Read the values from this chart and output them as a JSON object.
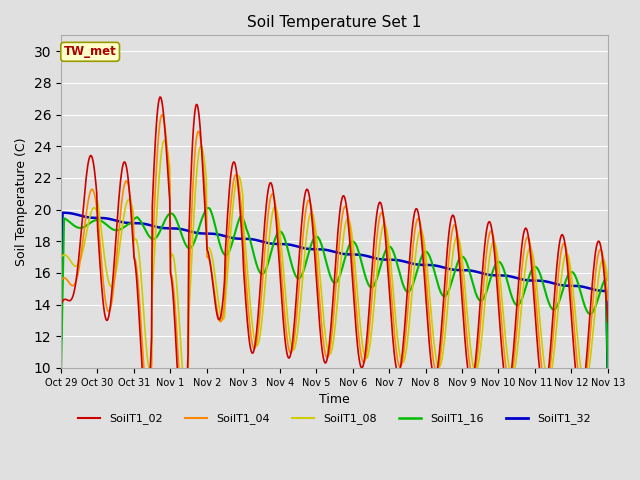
{
  "title": "Soil Temperature Set 1",
  "xlabel": "Time",
  "ylabel": "Soil Temperature (C)",
  "ylim": [
    10,
    31
  ],
  "yticks": [
    10,
    12,
    14,
    16,
    18,
    20,
    22,
    24,
    26,
    28,
    30
  ],
  "xtick_labels": [
    "Oct 29",
    "Oct 30",
    "Oct 31",
    "Nov 1",
    "Nov 2",
    "Nov 3",
    "Nov 4",
    "Nov 5",
    "Nov 6",
    "Nov 7",
    "Nov 8",
    "Nov 9",
    "Nov 10",
    "Nov 11",
    "Nov 12",
    "Nov 13"
  ],
  "background_color": "#e0e0e0",
  "plot_bg_color": "#e0e0e0",
  "series_colors": {
    "SoilT1_02": "#cc0000",
    "SoilT1_04": "#ff8800",
    "SoilT1_08": "#cccc00",
    "SoilT1_16": "#00bb00",
    "SoilT1_32": "#0000cc"
  },
  "annotation_text": "TW_met",
  "annotation_color": "#aa0000",
  "annotation_bg": "#ffffcc",
  "annotation_border": "#999900"
}
